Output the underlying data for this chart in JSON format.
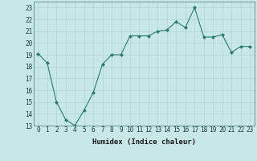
{
  "x": [
    0,
    1,
    2,
    3,
    4,
    5,
    6,
    7,
    8,
    9,
    10,
    11,
    12,
    13,
    14,
    15,
    16,
    17,
    18,
    19,
    20,
    21,
    22,
    23
  ],
  "y": [
    19.1,
    18.3,
    15.0,
    13.5,
    13.0,
    14.3,
    15.8,
    18.2,
    19.0,
    19.0,
    20.6,
    20.6,
    20.6,
    21.0,
    21.1,
    21.8,
    21.3,
    23.0,
    20.5,
    20.5,
    20.7,
    19.2,
    19.7,
    19.7
  ],
  "line_color": "#2d7a6e",
  "marker_color": "#2d7a6e",
  "bg_color": "#c8e8e8",
  "grid_color": "#aed4d4",
  "xlabel": "Humidex (Indice chaleur)",
  "ylim": [
    13,
    23.5
  ],
  "xlim": [
    -0.5,
    23.5
  ],
  "yticks": [
    13,
    14,
    15,
    16,
    17,
    18,
    19,
    20,
    21,
    22,
    23
  ],
  "xticks": [
    0,
    1,
    2,
    3,
    4,
    5,
    6,
    7,
    8,
    9,
    10,
    11,
    12,
    13,
    14,
    15,
    16,
    17,
    18,
    19,
    20,
    21,
    22,
    23
  ],
  "tick_fontsize": 5.5,
  "xlabel_fontsize": 6.5
}
